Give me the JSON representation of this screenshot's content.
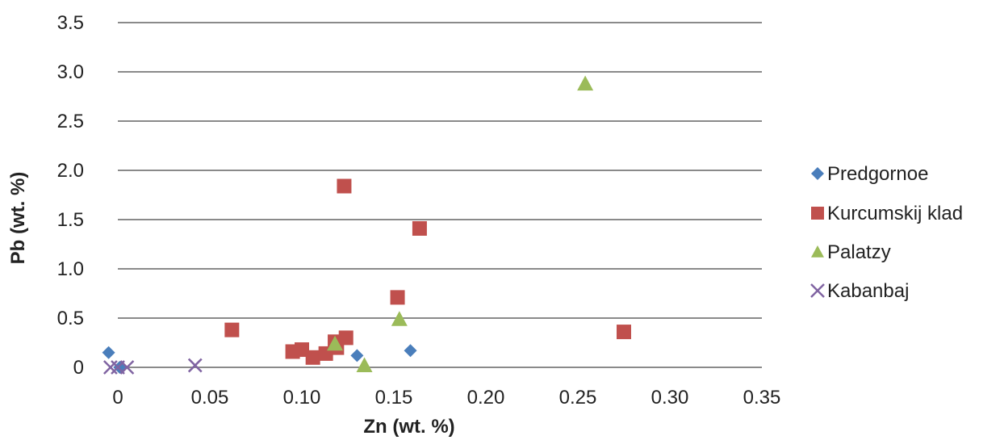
{
  "chart_data": {
    "type": "scatter",
    "title": "",
    "xlabel": "Zn (wt. %)",
    "ylabel": "Pb (wt. %)",
    "xlim": [
      0,
      0.35
    ],
    "ylim": [
      0,
      3.5
    ],
    "x_ticks": [
      0,
      0.05,
      0.1,
      0.15,
      0.2,
      0.25,
      0.3,
      0.35
    ],
    "x_tick_labels": [
      "0",
      "0.05",
      "0.10",
      "0.15",
      "0.20",
      "0.25",
      "0.30",
      "0.35"
    ],
    "y_ticks": [
      0,
      0.5,
      1.0,
      1.5,
      2.0,
      2.5,
      3.0,
      3.5
    ],
    "y_tick_labels": [
      "0",
      "0.5",
      "1.0",
      "1.5",
      "2.0",
      "2.5",
      "3.0",
      "3.5"
    ],
    "grid": "horizontal",
    "legend_position": "right",
    "series": [
      {
        "name": "Predgornoe",
        "marker": "diamond",
        "color": "#4a7ebb",
        "points": [
          [
            -0.005,
            0.15
          ],
          [
            0.001,
            0.0
          ],
          [
            0.13,
            0.12
          ],
          [
            0.159,
            0.17
          ]
        ]
      },
      {
        "name": "Kurcumskij klad",
        "marker": "square",
        "color": "#c0504d",
        "points": [
          [
            0.123,
            1.84
          ],
          [
            0.164,
            1.41
          ],
          [
            0.152,
            0.71
          ],
          [
            0.062,
            0.38
          ],
          [
            0.275,
            0.36
          ],
          [
            0.095,
            0.16
          ],
          [
            0.1,
            0.18
          ],
          [
            0.106,
            0.1
          ],
          [
            0.113,
            0.14
          ],
          [
            0.118,
            0.26
          ],
          [
            0.119,
            0.2
          ],
          [
            0.124,
            0.3
          ]
        ]
      },
      {
        "name": "Palatzy",
        "marker": "triangle",
        "color": "#9bbb59",
        "points": [
          [
            0.254,
            2.88
          ],
          [
            0.153,
            0.49
          ],
          [
            0.118,
            0.24
          ],
          [
            0.134,
            0.02
          ]
        ]
      },
      {
        "name": "Kabanbaj",
        "marker": "x",
        "color": "#8064a2",
        "points": [
          [
            -0.004,
            0.0
          ],
          [
            0.0,
            0.0
          ],
          [
            0.005,
            0.0
          ],
          [
            0.042,
            0.02
          ]
        ]
      }
    ]
  }
}
